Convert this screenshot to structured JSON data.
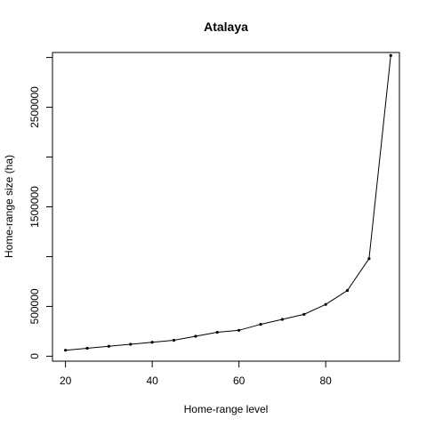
{
  "chart_data": {
    "type": "line",
    "title": "Atalaya",
    "xlabel": "Home-range level",
    "ylabel": "Home-range size (ha)",
    "x": [
      20,
      25,
      30,
      35,
      40,
      45,
      50,
      55,
      60,
      65,
      70,
      75,
      80,
      85,
      90,
      95
    ],
    "series": [
      {
        "values": [
          60000,
          80000,
          100000,
          120000,
          140000,
          160000,
          200000,
          240000,
          260000,
          320000,
          370000,
          420000,
          520000,
          660000,
          980000,
          3020000
        ]
      }
    ],
    "x_ticks": [
      20,
      40,
      60,
      80
    ],
    "x_tick_labels": [
      "20",
      "40",
      "60",
      "80"
    ],
    "y_ticks": [
      0,
      500000,
      1000000,
      1500000,
      2000000,
      2500000,
      3000000
    ],
    "y_tick_labels": [
      "0",
      "500000",
      "",
      "1500000",
      "",
      "2500000",
      ""
    ],
    "xlim": [
      17,
      97
    ],
    "ylim": [
      -50000,
      3050000
    ],
    "grid": false,
    "legend": "none",
    "line_color": "#000000",
    "point_color": "#000000"
  }
}
